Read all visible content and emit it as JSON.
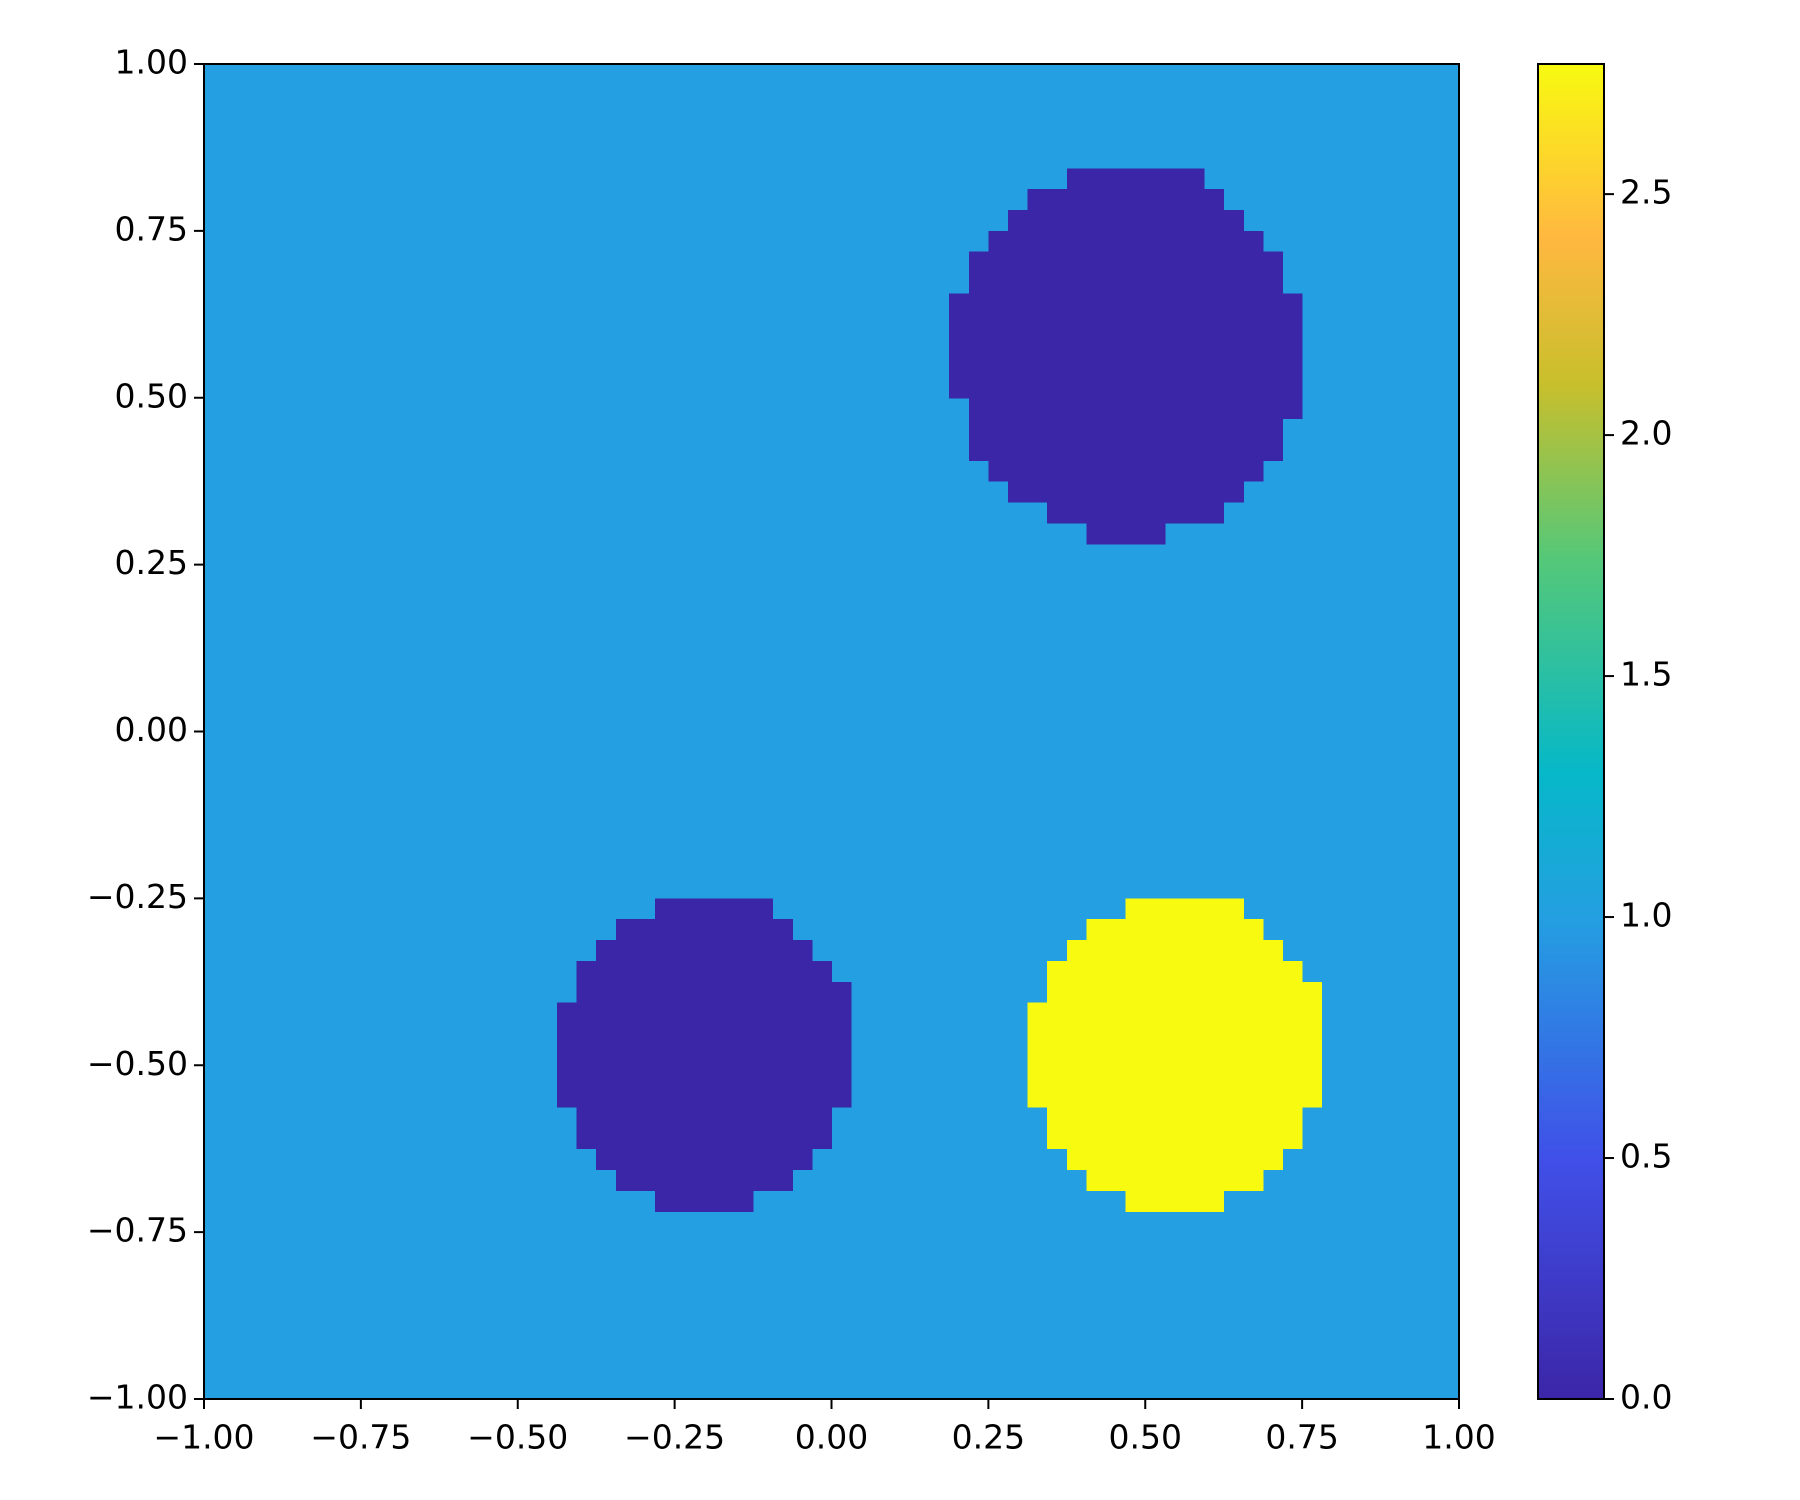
{
  "chart_data": {
    "type": "heatmap",
    "xlim": [
      -1,
      1
    ],
    "ylim": [
      -1,
      1
    ],
    "xticks": [
      {
        "value": -1,
        "label": "−1.00"
      },
      {
        "value": -0.75,
        "label": "−0.75"
      },
      {
        "value": -0.5,
        "label": "−0.50"
      },
      {
        "value": -0.25,
        "label": "−0.25"
      },
      {
        "value": 0,
        "label": "0.00"
      },
      {
        "value": 0.25,
        "label": "0.25"
      },
      {
        "value": 0.5,
        "label": "0.50"
      },
      {
        "value": 0.75,
        "label": "0.75"
      },
      {
        "value": 1,
        "label": "1.00"
      }
    ],
    "yticks": [
      {
        "value": -1,
        "label": "−1.00"
      },
      {
        "value": -0.75,
        "label": "−0.75"
      },
      {
        "value": -0.5,
        "label": "−0.50"
      },
      {
        "value": -0.25,
        "label": "−0.25"
      },
      {
        "value": 0,
        "label": "0.00"
      },
      {
        "value": 0.25,
        "label": "0.25"
      },
      {
        "value": 0.5,
        "label": "0.50"
      },
      {
        "value": 0.75,
        "label": "0.75"
      },
      {
        "value": 1,
        "label": "1.00"
      }
    ],
    "grid_size": 64,
    "background": 1.0,
    "regions": [
      {
        "shape": "circle",
        "center": [
          0.47,
          0.57
        ],
        "radius": 0.28,
        "value": 0
      },
      {
        "shape": "circle",
        "center": [
          -0.2,
          -0.48
        ],
        "radius": 0.235,
        "value": 0
      },
      {
        "shape": "circle",
        "center": [
          0.55,
          -0.48
        ],
        "radius": 0.235,
        "value": 2.77
      }
    ],
    "clim": [
      0,
      2.77
    ],
    "cticks": [
      {
        "value": 0,
        "label": "0.0"
      },
      0.5,
      {
        "value": 1,
        "label": "1.0"
      },
      1.5,
      {
        "value": 2,
        "label": "2.0"
      },
      2.5
    ],
    "colormap": [
      [
        0,
        "#3c26a8"
      ],
      [
        0.18,
        "#4050e8"
      ],
      [
        0.36,
        "#249fe1"
      ],
      [
        0.47,
        "#06b8c8"
      ],
      [
        0.63,
        "#55c878"
      ],
      [
        0.76,
        "#c8bf2c"
      ],
      [
        0.87,
        "#ffb840"
      ],
      [
        1,
        "#f8fa10"
      ]
    ]
  }
}
